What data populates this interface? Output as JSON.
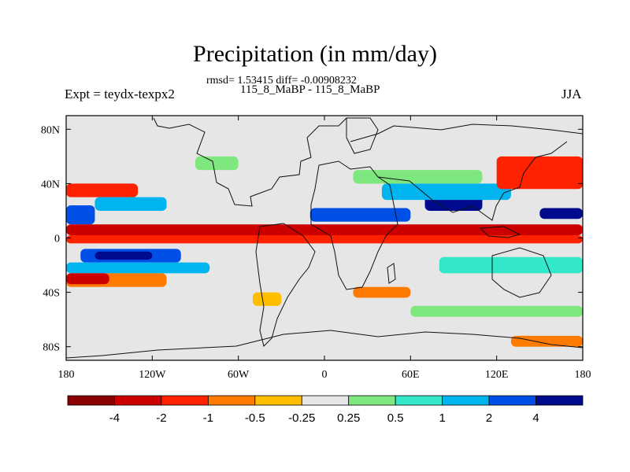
{
  "chart_data": {
    "type": "heatmap",
    "title": "Precipitation (in mm/day)",
    "stats_line": "rmsd= 1.53415 diff= -0.00908232",
    "subtitle": "115_8_MaBP - 115_8_MaBP",
    "left_label": "Expt = teydx-texpx2",
    "right_label": "JJA",
    "x_ticks": [
      "180",
      "120W",
      "60W",
      "0",
      "60E",
      "120E",
      "180"
    ],
    "y_ticks": [
      "80N",
      "40N",
      "0",
      "40S",
      "80S"
    ],
    "x_range": [
      -180,
      180
    ],
    "y_range": [
      -90,
      90
    ],
    "colorbar": {
      "labels": [
        "-4",
        "-2",
        "-1",
        "-0.5",
        "-0.25",
        "0.25",
        "0.5",
        "1",
        "2",
        "4"
      ],
      "colors": [
        "#8b0000",
        "#cc0000",
        "#ff2200",
        "#ff7a00",
        "#ffbf00",
        "#e6e6e6",
        "#7ee87e",
        "#33e8c8",
        "#00b4f0",
        "#0050e8",
        "#000a8c"
      ]
    },
    "bands": [
      {
        "lat_from": 10,
        "lat_to": 24,
        "lon_from": -180,
        "lon_to": -160,
        "color": "#0050e8"
      },
      {
        "lat_from": 2,
        "lat_to": 10,
        "lon_from": -180,
        "lon_to": 180,
        "color": "#cc0000"
      },
      {
        "lat_from": -4,
        "lat_to": 2,
        "lon_from": -180,
        "lon_to": 180,
        "color": "#ff2200"
      },
      {
        "lat_from": -18,
        "lat_to": -8,
        "lon_from": -170,
        "lon_to": -100,
        "color": "#0050e8"
      },
      {
        "lat_from": -16,
        "lat_to": -10,
        "lon_from": -160,
        "lon_to": -120,
        "color": "#000a8c"
      },
      {
        "lat_from": -26,
        "lat_to": -18,
        "lon_from": -180,
        "lon_to": -80,
        "color": "#00b4f0"
      },
      {
        "lat_from": -36,
        "lat_to": -26,
        "lon_from": -180,
        "lon_to": -110,
        "color": "#ff7a00"
      },
      {
        "lat_from": -34,
        "lat_to": -26,
        "lon_from": -180,
        "lon_to": -150,
        "color": "#cc0000"
      },
      {
        "lat_from": 30,
        "lat_to": 40,
        "lon_from": -180,
        "lon_to": -130,
        "color": "#ff2200"
      },
      {
        "lat_from": 20,
        "lat_to": 30,
        "lon_from": -160,
        "lon_to": -110,
        "color": "#00b4f0"
      },
      {
        "lat_from": 12,
        "lat_to": 22,
        "lon_from": -10,
        "lon_to": 60,
        "color": "#0050e8"
      },
      {
        "lat_from": 20,
        "lat_to": 32,
        "lon_from": 70,
        "lon_to": 110,
        "color": "#000a8c"
      },
      {
        "lat_from": 28,
        "lat_to": 40,
        "lon_from": 40,
        "lon_to": 130,
        "color": "#00b4f0"
      },
      {
        "lat_from": 36,
        "lat_to": 60,
        "lon_from": 120,
        "lon_to": 180,
        "color": "#ff2200"
      },
      {
        "lat_from": 14,
        "lat_to": 22,
        "lon_from": 150,
        "lon_to": 180,
        "color": "#000a8c"
      },
      {
        "lat_from": 40,
        "lat_to": 50,
        "lon_from": 20,
        "lon_to": 110,
        "color": "#7ee87e"
      },
      {
        "lat_from": 50,
        "lat_to": 60,
        "lon_from": -90,
        "lon_to": -60,
        "color": "#7ee87e"
      },
      {
        "lat_from": -26,
        "lat_to": -14,
        "lon_from": 80,
        "lon_to": 180,
        "color": "#33e8c8"
      },
      {
        "lat_from": -44,
        "lat_to": -36,
        "lon_from": 20,
        "lon_to": 60,
        "color": "#ff7a00"
      },
      {
        "lat_from": -50,
        "lat_to": -40,
        "lon_from": -50,
        "lon_to": -30,
        "color": "#ffbf00"
      },
      {
        "lat_from": -58,
        "lat_to": -50,
        "lon_from": 60,
        "lon_to": 180,
        "color": "#7ee87e"
      },
      {
        "lat_from": -80,
        "lat_to": -72,
        "lon_from": 130,
        "lon_to": 180,
        "color": "#ff7a00"
      }
    ]
  }
}
